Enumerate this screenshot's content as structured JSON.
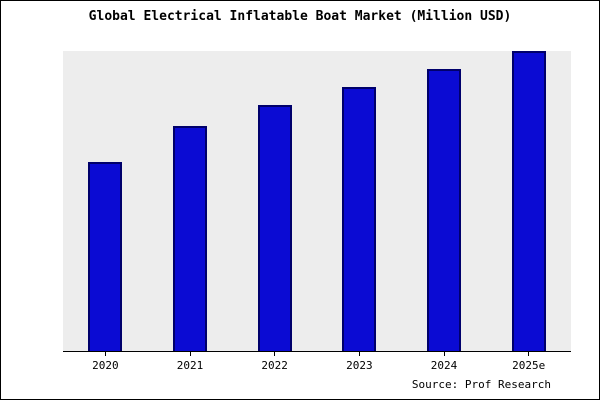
{
  "title": "Global Electrical Inflatable Boat Market (Million USD)",
  "source": "Source: Prof Research",
  "colors": {
    "bar_fill": "#0b0bd3",
    "bar_border": "#00006b",
    "plot_bg": "#ededed",
    "axis": "#000000"
  },
  "chart_data": {
    "type": "bar",
    "categories": [
      "2020",
      "2021",
      "2022",
      "2023",
      "2024",
      "2025e"
    ],
    "values": [
      63,
      75,
      82,
      88,
      94,
      100
    ],
    "title": "Global Electrical Inflatable Boat Market (Million USD)",
    "xlabel": "",
    "ylabel": "",
    "ylim": [
      0,
      100
    ],
    "grid": false,
    "legend": false,
    "annotations": [
      "Source: Prof Research"
    ]
  }
}
